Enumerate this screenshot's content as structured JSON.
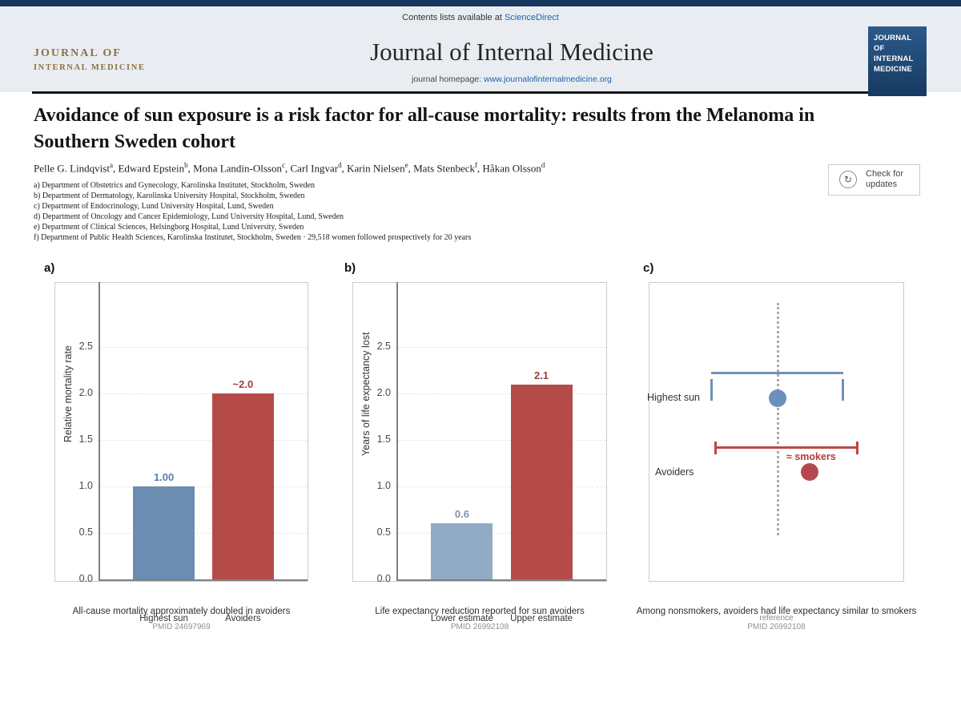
{
  "header": {
    "contents_prefix": "Contents lists available at",
    "sciencedirect_link": "ScienceDirect",
    "logo": {
      "line1": "JOURNAL OF",
      "line2": "INTERNAL MEDICINE"
    },
    "journal_title": "Journal of Internal Medicine",
    "homepage_prefix": "journal homepage:",
    "homepage_link": "www.journalofinternalmedicine.org",
    "cover_lines": [
      "JOURNAL OF",
      "INTERNAL",
      "MEDICINE"
    ],
    "colors": {
      "topbar": "#17365e",
      "band": "#e9edf2",
      "link": "#1b62ae",
      "logo_gold": "#8d7040",
      "cover_bg": "#1d4574"
    }
  },
  "article": {
    "title": "Avoidance of sun exposure is a risk factor for all-cause mortality: results from the Melanoma in Southern Sweden cohort",
    "authors": [
      {
        "name": "Pelle G. Lindqvist",
        "sup": "a"
      },
      {
        "name": "Edward Epstein",
        "sup": "b"
      },
      {
        "name": "Mona Landin-Olsson",
        "sup": "c"
      },
      {
        "name": "Carl Ingvar",
        "sup": "d"
      },
      {
        "name": "Karin Nielsen",
        "sup": "e"
      },
      {
        "name": "Mats Stenbeck",
        "sup": "f"
      },
      {
        "name": "Håkan Olsson",
        "sup": "d"
      }
    ],
    "affiliations": [
      "a) Department of Obstetrics and Gynecology, Karolinska Institutet, Stockholm, Sweden",
      "b) Department of Dermatology, Karolinska University Hospital, Stockholm, Sweden",
      "c) Department of Endocrinology, Lund University Hospital, Lund, Sweden",
      "d) Department of Oncology and Cancer Epidemiology, Lund University Hospital, Lund, Sweden",
      "e) Department of Clinical Sciences, Helsingborg Hospital, Lund University, Sweden",
      "f) Department of Public Health Sciences, Karolinska Institutet, Stockholm, Sweden · 29,518 women followed prospectively for 20 years"
    ],
    "check_badge": {
      "line1": "Check for",
      "line2": "updates",
      "icon": "refresh-icon"
    }
  },
  "chart_data": [
    {
      "type": "bar",
      "tag": "a)",
      "ylabel": "Relative mortality rate",
      "yticks": [
        "0.0",
        "0.5",
        "1.0",
        "1.5",
        "2.0",
        "2.5"
      ],
      "ylim": [
        0,
        3.2
      ],
      "grid": true,
      "categories": [
        "Highest sun",
        "Avoiders"
      ],
      "values": [
        1.0,
        2.0
      ],
      "value_labels": [
        "1.00",
        "~2.0"
      ],
      "bar_colors": [
        "#6a8db1",
        "#b54b49"
      ],
      "value_label_colors": [
        "#5a7fa5",
        "#a03d3c"
      ],
      "caption": "All-cause mortality approximately doubled in avoiders",
      "source": "PMID 24697969"
    },
    {
      "type": "bar",
      "tag": "b)",
      "ylabel": "Years of life expectancy lost",
      "yticks": [
        "0.0",
        "0.5",
        "1.0",
        "1.5",
        "2.0",
        "2.5"
      ],
      "ylim": [
        0,
        3.2
      ],
      "grid": true,
      "categories": [
        "Lower estimate",
        "Upper estimate"
      ],
      "values": [
        0.6,
        2.1
      ],
      "value_labels": [
        "0.6",
        "2.1"
      ],
      "bar_colors": [
        "#91abc6",
        "#b54b49"
      ],
      "value_label_colors": [
        "#7d95aa",
        "#a03d3c"
      ],
      "caption": "Life expectancy reduction reported for sun avoiders",
      "source": "PMID 26992108"
    },
    {
      "type": "scatter",
      "tag": "c)",
      "rows": [
        {
          "label": "Highest sun",
          "line_color": "#7191b4",
          "dot_color": "#6a90bb"
        },
        {
          "label": "Avoiders",
          "line_color": "#c04545",
          "dot_color": "#b5484e",
          "annotation": "≈ smokers"
        }
      ],
      "reference_label": "reference",
      "caption": "Among nonsmokers, avoiders had life expectancy similar to smokers",
      "source": "PMID 26992108"
    }
  ]
}
